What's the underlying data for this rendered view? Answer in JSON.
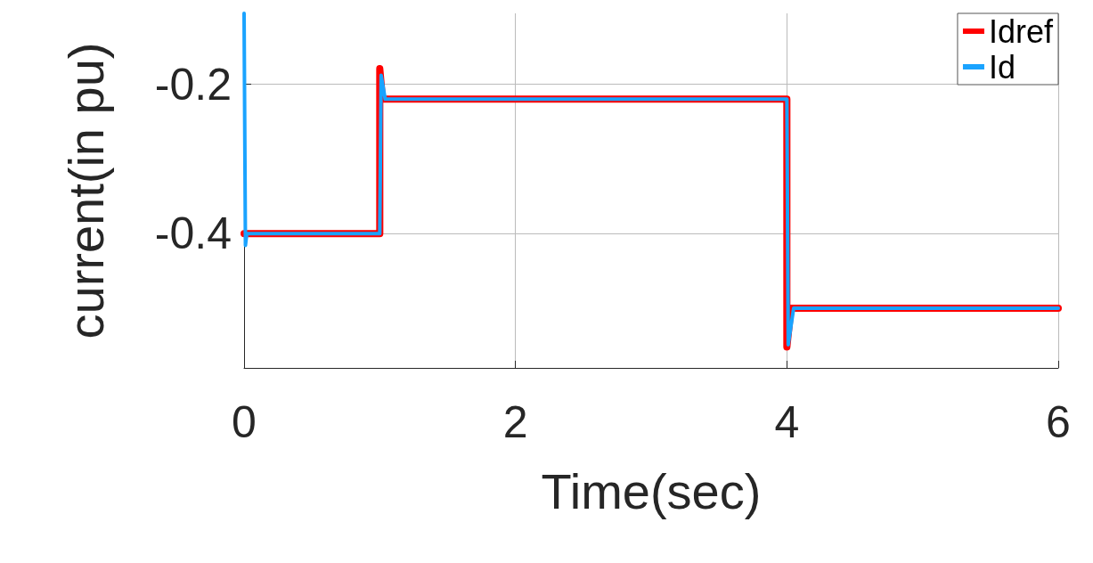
{
  "chart_data": {
    "type": "line",
    "xlabel": "Time(sec)",
    "ylabel": "current(in pu)",
    "xlim": [
      0,
      6
    ],
    "xticks": [
      0,
      2,
      4,
      6
    ],
    "ylim": [
      -0.58,
      -0.105
    ],
    "yticks": [
      -0.4,
      -0.2
    ],
    "grid": true,
    "legend": "top right",
    "line_style": "solid",
    "marker": "none",
    "series": [
      {
        "name": "Idref",
        "color": "#ff0000",
        "x": [
          0,
          1,
          1,
          1.02,
          4,
          4,
          4.03,
          6
        ],
        "values": [
          -0.4,
          -0.4,
          -0.179,
          -0.22,
          -0.22,
          -0.552,
          -0.5,
          -0.5
        ]
      },
      {
        "name": "Id",
        "color": "#1aa3ff",
        "x": [
          0,
          0.01,
          0.02,
          1,
          1.01,
          1.04,
          4,
          4.01,
          4.05,
          6
        ],
        "values": [
          -0.105,
          -0.416,
          -0.4,
          -0.4,
          -0.188,
          -0.22,
          -0.22,
          -0.549,
          -0.5,
          -0.5
        ]
      }
    ]
  }
}
